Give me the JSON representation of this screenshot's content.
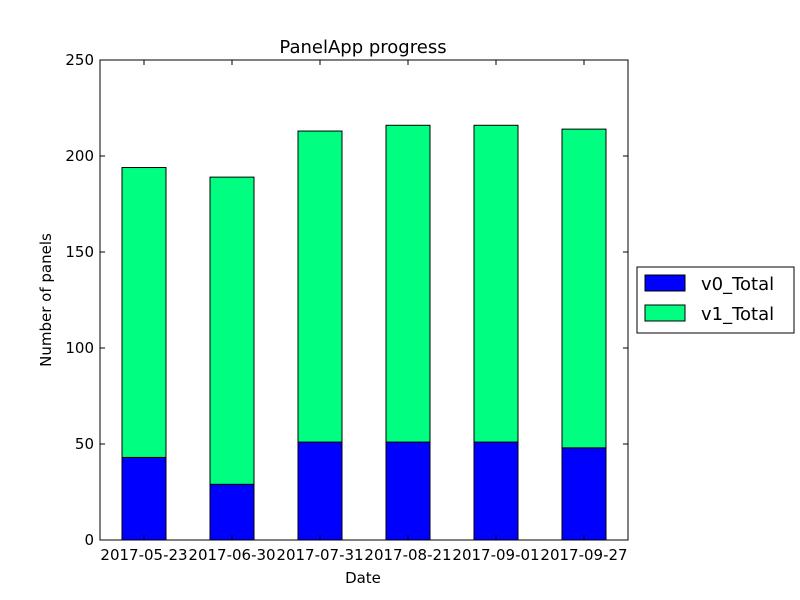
{
  "chart_data": {
    "type": "bar",
    "stacked": true,
    "title": "PanelApp progress",
    "xlabel": "Date",
    "ylabel": "Number of panels",
    "ylim": [
      0,
      250
    ],
    "yticks": [
      0,
      50,
      100,
      150,
      200,
      250
    ],
    "grid": false,
    "legend_position": "outside-right",
    "categories": [
      "2017-05-23",
      "2017-06-30",
      "2017-07-31",
      "2017-08-21",
      "2017-09-01",
      "2017-09-27"
    ],
    "series": [
      {
        "name": "v0_Total",
        "color": "#0000ff",
        "values": [
          43,
          29,
          51,
          51,
          51,
          48
        ]
      },
      {
        "name": "v1_Total",
        "color": "#00ff80",
        "values": [
          151,
          160,
          162,
          165,
          165,
          166
        ]
      }
    ]
  }
}
